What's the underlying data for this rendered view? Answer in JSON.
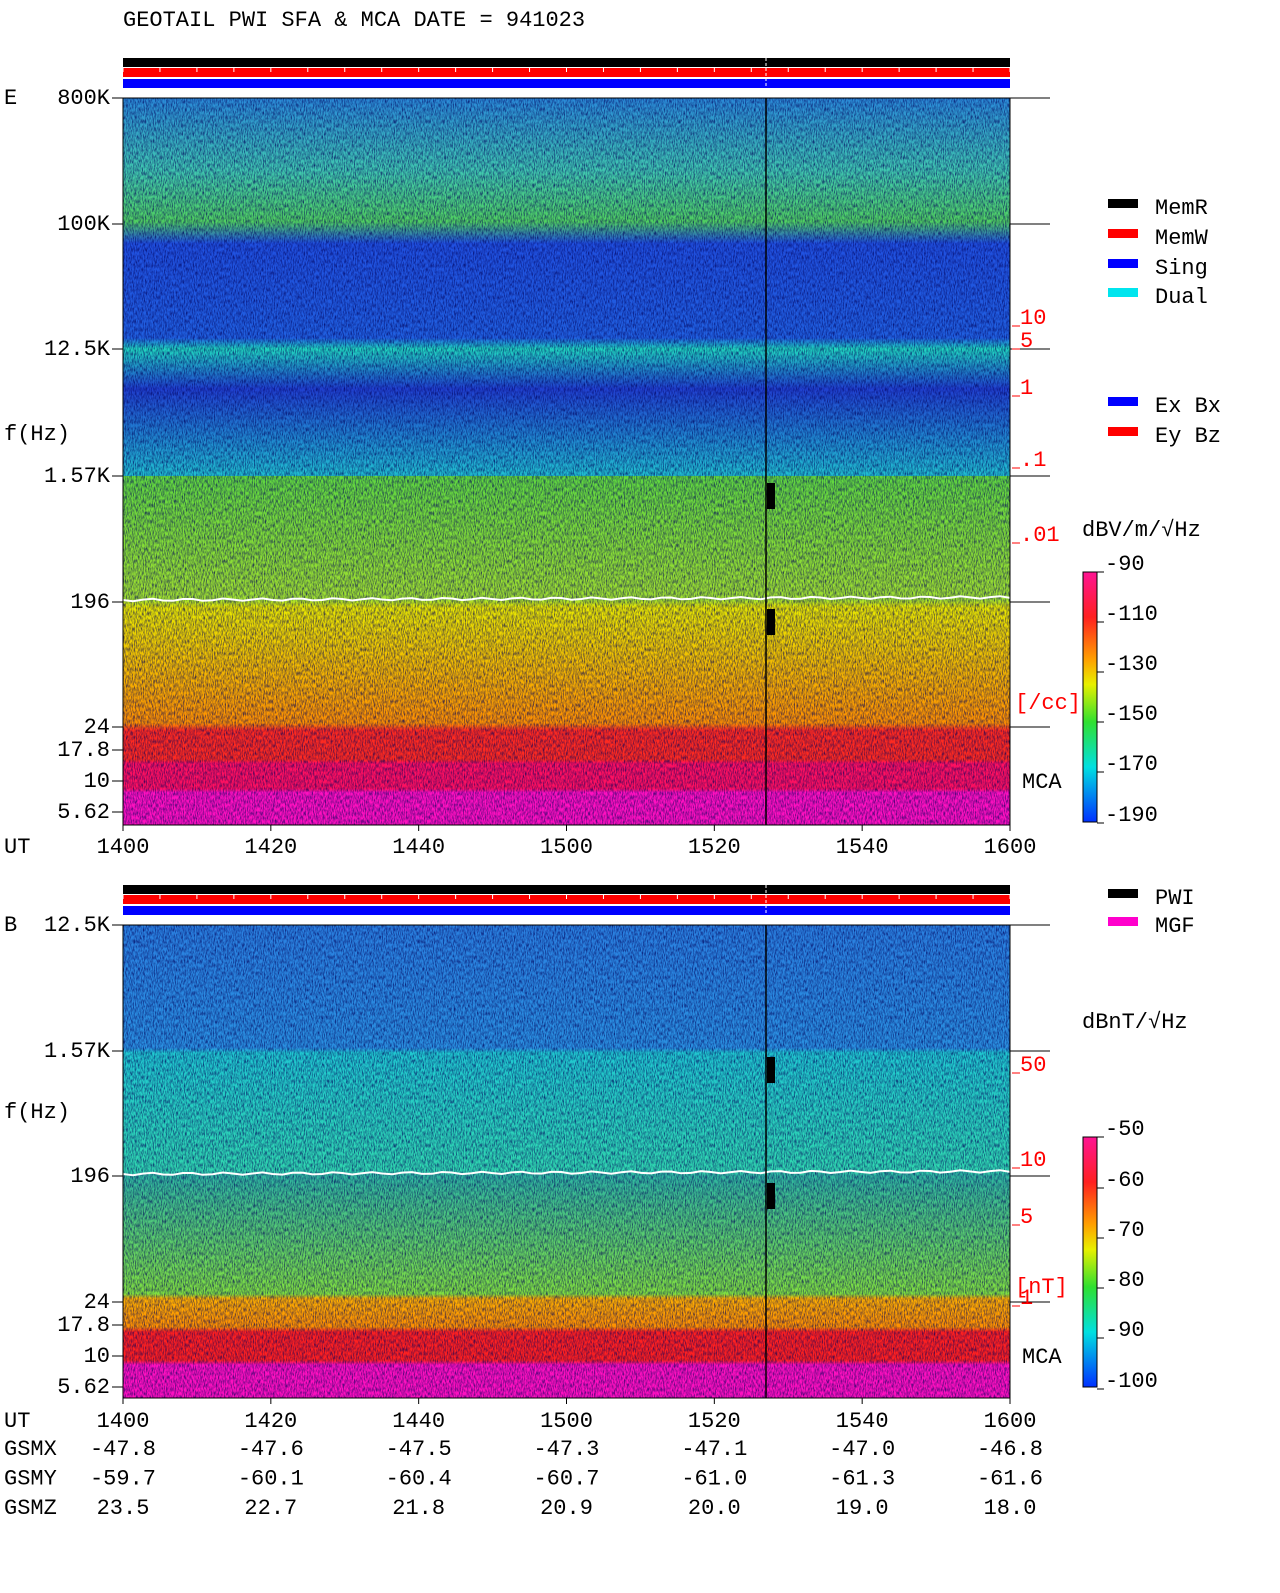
{
  "title": "GEOTAIL  PWI SFA & MCA   DATE = 941023",
  "panels": [
    {
      "label": "E",
      "y_label": "f(Hz)",
      "freq_ticks": [
        "800K",
        "100K",
        "12.5K",
        "1.57K",
        "196",
        "24",
        "17.8",
        "10",
        "5.62"
      ],
      "x_label": "UT",
      "time_ticks": [
        "1400",
        "1420",
        "1440",
        "1500",
        "1520",
        "1540",
        "1600"
      ],
      "density_scale": [
        "10",
        "5",
        "1",
        ".1",
        ".01"
      ],
      "density_unit": "[/cc]",
      "band_label": "MCA",
      "colorbar_unit": "dBV/m/√Hz",
      "colorbar_ticks": [
        -90,
        -110,
        -130,
        -150,
        -170,
        -190
      ]
    },
    {
      "label": "B",
      "y_label": "f(Hz)",
      "freq_ticks": [
        "12.5K",
        "1.57K",
        "196",
        "24",
        "17.8",
        "10",
        "5.62"
      ],
      "x_label": "UT",
      "time_ticks": [
        "1400",
        "1420",
        "1440",
        "1500",
        "1520",
        "1540",
        "1600"
      ],
      "density_scale": [
        "50",
        "10",
        "5",
        "1"
      ],
      "density_unit": "[nT]",
      "band_label": "MCA",
      "colorbar_unit": "dBnT/√Hz",
      "colorbar_ticks": [
        -50,
        -60,
        -70,
        -80,
        -90,
        -100
      ]
    }
  ],
  "legend_memory": [
    {
      "label": "MemR",
      "color": "#000000"
    },
    {
      "label": "MemW",
      "color": "#ff0000"
    },
    {
      "label": "Sing",
      "color": "#0000ff"
    },
    {
      "label": "Dual",
      "color": "#00e5ee"
    }
  ],
  "legend_antenna": [
    {
      "label": "Ex Bx",
      "color": "#0000ff"
    },
    {
      "label": "Ey Bz",
      "color": "#ff0000"
    }
  ],
  "legend_source": [
    {
      "label": "PWI",
      "color": "#000000"
    },
    {
      "label": "MGF",
      "color": "#ff00cc"
    }
  ],
  "orbit": [
    {
      "name": "GSMX",
      "values": [
        "-47.8",
        "-47.6",
        "-47.5",
        "-47.3",
        "-47.1",
        "-47.0",
        "-46.8"
      ]
    },
    {
      "name": "GSMY",
      "values": [
        "-59.7",
        "-60.1",
        "-60.4",
        "-60.7",
        "-61.0",
        "-61.3",
        "-61.6"
      ]
    },
    {
      "name": "GSMZ",
      "values": [
        "23.5",
        "22.7",
        "21.8",
        "20.9",
        "20.0",
        "19.0",
        "18.0"
      ]
    }
  ]
}
